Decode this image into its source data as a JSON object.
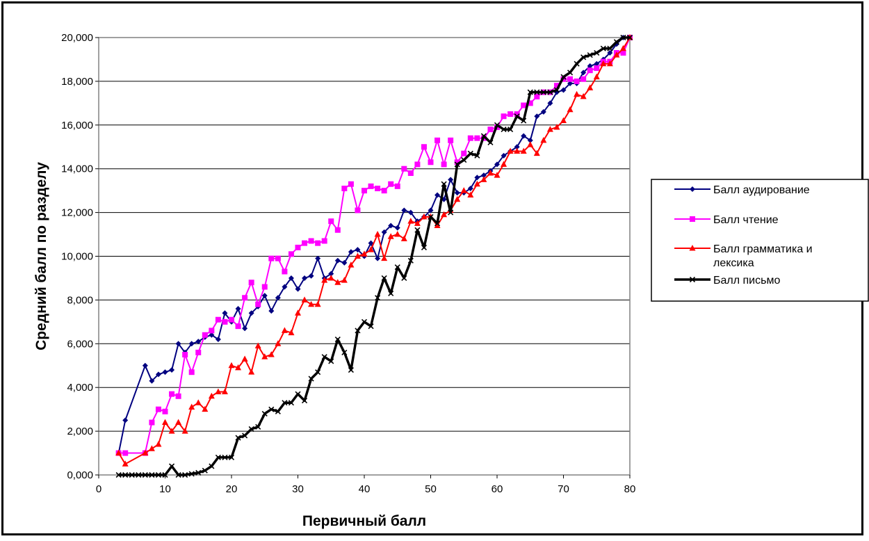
{
  "chart_data": {
    "type": "line",
    "title": "",
    "xlabel": "Первичный балл",
    "ylabel": "Средний балл по разделу",
    "xlim": [
      0,
      80
    ],
    "ylim": [
      0,
      20
    ],
    "x_ticks": [
      "0",
      "10",
      "20",
      "30",
      "40",
      "50",
      "60",
      "70",
      "80"
    ],
    "y_ticks": [
      "0,000",
      "2,000",
      "4,000",
      "6,000",
      "8,000",
      "10,000",
      "12,000",
      "14,000",
      "16,000",
      "18,000",
      "20,000"
    ],
    "grid": "horizontal",
    "legend": "right",
    "series": [
      {
        "name": "Балл аудирование",
        "color": "#000080",
        "marker": "diamond",
        "points": [
          [
            3,
            1.0
          ],
          [
            4,
            2.5
          ],
          [
            7,
            5.0
          ],
          [
            8,
            4.3
          ],
          [
            9,
            4.6
          ],
          [
            10,
            4.7
          ],
          [
            11,
            4.8
          ],
          [
            12,
            6.0
          ],
          [
            13,
            5.6
          ],
          [
            14,
            6.0
          ],
          [
            15,
            6.1
          ],
          [
            16,
            6.3
          ],
          [
            17,
            6.4
          ],
          [
            18,
            6.2
          ],
          [
            19,
            7.4
          ],
          [
            20,
            7.0
          ],
          [
            21,
            7.6
          ],
          [
            22,
            6.7
          ],
          [
            23,
            7.4
          ],
          [
            24,
            7.7
          ],
          [
            25,
            8.2
          ],
          [
            26,
            7.5
          ],
          [
            27,
            8.1
          ],
          [
            28,
            8.6
          ],
          [
            29,
            9.0
          ],
          [
            30,
            8.5
          ],
          [
            31,
            9.0
          ],
          [
            32,
            9.1
          ],
          [
            33,
            9.9
          ],
          [
            34,
            9.0
          ],
          [
            35,
            9.2
          ],
          [
            36,
            9.8
          ],
          [
            37,
            9.7
          ],
          [
            38,
            10.2
          ],
          [
            39,
            10.3
          ],
          [
            40,
            10.0
          ],
          [
            41,
            10.6
          ],
          [
            42,
            9.9
          ],
          [
            43,
            11.1
          ],
          [
            44,
            11.4
          ],
          [
            45,
            11.3
          ],
          [
            46,
            12.1
          ],
          [
            47,
            12.0
          ],
          [
            48,
            11.6
          ],
          [
            49,
            11.8
          ],
          [
            50,
            12.1
          ],
          [
            51,
            12.8
          ],
          [
            52,
            12.6
          ],
          [
            53,
            13.5
          ],
          [
            54,
            12.9
          ],
          [
            55,
            12.9
          ],
          [
            56,
            13.1
          ],
          [
            57,
            13.6
          ],
          [
            58,
            13.7
          ],
          [
            59,
            13.9
          ],
          [
            60,
            14.2
          ],
          [
            61,
            14.6
          ],
          [
            62,
            14.8
          ],
          [
            63,
            15.0
          ],
          [
            64,
            15.5
          ],
          [
            65,
            15.3
          ],
          [
            66,
            16.4
          ],
          [
            67,
            16.6
          ],
          [
            68,
            17.0
          ],
          [
            69,
            17.5
          ],
          [
            70,
            17.6
          ],
          [
            71,
            17.9
          ],
          [
            72,
            17.9
          ],
          [
            73,
            18.4
          ],
          [
            74,
            18.7
          ],
          [
            75,
            18.8
          ],
          [
            76,
            19.0
          ],
          [
            77,
            19.3
          ],
          [
            78,
            19.7
          ],
          [
            79,
            20.0
          ],
          [
            80,
            20.0
          ]
        ]
      },
      {
        "name": "Балл чтение",
        "color": "#ff00ff",
        "marker": "square",
        "points": [
          [
            3,
            1.0
          ],
          [
            4,
            1.0
          ],
          [
            7,
            1.0
          ],
          [
            8,
            2.4
          ],
          [
            9,
            3.0
          ],
          [
            10,
            2.9
          ],
          [
            11,
            3.7
          ],
          [
            12,
            3.6
          ],
          [
            13,
            5.5
          ],
          [
            14,
            4.7
          ],
          [
            15,
            5.6
          ],
          [
            16,
            6.4
          ],
          [
            17,
            6.6
          ],
          [
            18,
            7.1
          ],
          [
            19,
            7.0
          ],
          [
            20,
            7.1
          ],
          [
            21,
            6.8
          ],
          [
            22,
            8.1
          ],
          [
            23,
            8.8
          ],
          [
            24,
            7.8
          ],
          [
            25,
            8.6
          ],
          [
            26,
            9.9
          ],
          [
            27,
            9.9
          ],
          [
            28,
            9.3
          ],
          [
            29,
            10.1
          ],
          [
            30,
            10.4
          ],
          [
            31,
            10.6
          ],
          [
            32,
            10.7
          ],
          [
            33,
            10.6
          ],
          [
            34,
            10.7
          ],
          [
            35,
            11.6
          ],
          [
            36,
            11.2
          ],
          [
            37,
            13.1
          ],
          [
            38,
            13.3
          ],
          [
            39,
            12.1
          ],
          [
            40,
            13.0
          ],
          [
            41,
            13.2
          ],
          [
            42,
            13.1
          ],
          [
            43,
            13.0
          ],
          [
            44,
            13.3
          ],
          [
            45,
            13.2
          ],
          [
            46,
            14.0
          ],
          [
            47,
            13.8
          ],
          [
            48,
            14.2
          ],
          [
            49,
            15.0
          ],
          [
            50,
            14.3
          ],
          [
            51,
            15.3
          ],
          [
            52,
            14.2
          ],
          [
            53,
            15.3
          ],
          [
            54,
            14.3
          ],
          [
            55,
            14.7
          ],
          [
            56,
            15.4
          ],
          [
            57,
            15.4
          ],
          [
            58,
            15.4
          ],
          [
            59,
            15.8
          ],
          [
            60,
            15.9
          ],
          [
            61,
            16.4
          ],
          [
            62,
            16.5
          ],
          [
            63,
            16.5
          ],
          [
            64,
            16.9
          ],
          [
            65,
            17.0
          ],
          [
            66,
            17.3
          ],
          [
            67,
            17.5
          ],
          [
            68,
            17.5
          ],
          [
            69,
            17.8
          ],
          [
            70,
            18.1
          ],
          [
            71,
            18.1
          ],
          [
            72,
            18.0
          ],
          [
            73,
            18.1
          ],
          [
            74,
            18.5
          ],
          [
            75,
            18.6
          ],
          [
            76,
            18.9
          ],
          [
            77,
            18.9
          ],
          [
            78,
            19.3
          ],
          [
            79,
            19.3
          ],
          [
            80,
            20.0
          ]
        ]
      },
      {
        "name": "Балл грамматика и лексика",
        "color": "#ff0000",
        "marker": "triangle",
        "points": [
          [
            3,
            1.0
          ],
          [
            4,
            0.5
          ],
          [
            7,
            1.0
          ],
          [
            8,
            1.2
          ],
          [
            9,
            1.4
          ],
          [
            10,
            2.4
          ],
          [
            11,
            2.0
          ],
          [
            12,
            2.4
          ],
          [
            13,
            2.0
          ],
          [
            14,
            3.1
          ],
          [
            15,
            3.3
          ],
          [
            16,
            3.0
          ],
          [
            17,
            3.6
          ],
          [
            18,
            3.8
          ],
          [
            19,
            3.8
          ],
          [
            20,
            5.0
          ],
          [
            21,
            4.9
          ],
          [
            22,
            5.3
          ],
          [
            23,
            4.7
          ],
          [
            24,
            5.9
          ],
          [
            25,
            5.4
          ],
          [
            26,
            5.5
          ],
          [
            27,
            6.0
          ],
          [
            28,
            6.6
          ],
          [
            29,
            6.5
          ],
          [
            30,
            7.4
          ],
          [
            31,
            8.0
          ],
          [
            32,
            7.8
          ],
          [
            33,
            7.8
          ],
          [
            34,
            8.9
          ],
          [
            35,
            9.0
          ],
          [
            36,
            8.8
          ],
          [
            37,
            8.9
          ],
          [
            38,
            9.6
          ],
          [
            39,
            10.0
          ],
          [
            40,
            10.1
          ],
          [
            41,
            10.3
          ],
          [
            42,
            11.0
          ],
          [
            43,
            9.9
          ],
          [
            44,
            10.9
          ],
          [
            45,
            11.0
          ],
          [
            46,
            10.8
          ],
          [
            47,
            11.6
          ],
          [
            48,
            11.5
          ],
          [
            49,
            11.8
          ],
          [
            50,
            11.8
          ],
          [
            51,
            11.4
          ],
          [
            52,
            11.9
          ],
          [
            53,
            12.1
          ],
          [
            54,
            12.6
          ],
          [
            55,
            13.0
          ],
          [
            56,
            12.8
          ],
          [
            57,
            13.3
          ],
          [
            58,
            13.5
          ],
          [
            59,
            13.8
          ],
          [
            60,
            13.7
          ],
          [
            61,
            14.2
          ],
          [
            62,
            14.8
          ],
          [
            63,
            14.8
          ],
          [
            64,
            14.8
          ],
          [
            65,
            15.1
          ],
          [
            66,
            14.7
          ],
          [
            67,
            15.3
          ],
          [
            68,
            15.8
          ],
          [
            69,
            15.9
          ],
          [
            70,
            16.2
          ],
          [
            71,
            16.7
          ],
          [
            72,
            17.4
          ],
          [
            73,
            17.3
          ],
          [
            74,
            17.7
          ],
          [
            75,
            18.2
          ],
          [
            76,
            18.8
          ],
          [
            77,
            18.8
          ],
          [
            78,
            19.2
          ],
          [
            79,
            19.5
          ],
          [
            80,
            20.0
          ]
        ]
      },
      {
        "name": "Балл письмо",
        "color": "#000000",
        "marker": "x",
        "points": [
          [
            3,
            0.0
          ],
          [
            4,
            0.0
          ],
          [
            5,
            0.0
          ],
          [
            6,
            0.0
          ],
          [
            7,
            0.0
          ],
          [
            8,
            0.0
          ],
          [
            9,
            0.0
          ],
          [
            10,
            0.0
          ],
          [
            11,
            0.4
          ],
          [
            12,
            0.0
          ],
          [
            13,
            0.0
          ],
          [
            14,
            0.05
          ],
          [
            15,
            0.1
          ],
          [
            16,
            0.2
          ],
          [
            17,
            0.4
          ],
          [
            18,
            0.8
          ],
          [
            19,
            0.8
          ],
          [
            20,
            0.8
          ],
          [
            21,
            1.7
          ],
          [
            22,
            1.8
          ],
          [
            23,
            2.1
          ],
          [
            24,
            2.2
          ],
          [
            25,
            2.8
          ],
          [
            26,
            3.0
          ],
          [
            27,
            2.9
          ],
          [
            28,
            3.3
          ],
          [
            29,
            3.3
          ],
          [
            30,
            3.7
          ],
          [
            31,
            3.4
          ],
          [
            32,
            4.4
          ],
          [
            33,
            4.7
          ],
          [
            34,
            5.4
          ],
          [
            35,
            5.2
          ],
          [
            36,
            6.2
          ],
          [
            37,
            5.6
          ],
          [
            38,
            4.8
          ],
          [
            39,
            6.6
          ],
          [
            40,
            7.0
          ],
          [
            41,
            6.8
          ],
          [
            42,
            8.1
          ],
          [
            43,
            9.0
          ],
          [
            44,
            8.3
          ],
          [
            45,
            9.5
          ],
          [
            46,
            9.0
          ],
          [
            47,
            9.8
          ],
          [
            48,
            11.2
          ],
          [
            49,
            10.4
          ],
          [
            50,
            11.8
          ],
          [
            51,
            11.5
          ],
          [
            52,
            13.3
          ],
          [
            53,
            12.0
          ],
          [
            54,
            14.2
          ],
          [
            55,
            14.4
          ],
          [
            56,
            14.7
          ],
          [
            57,
            14.6
          ],
          [
            58,
            15.5
          ],
          [
            59,
            15.2
          ],
          [
            60,
            16.0
          ],
          [
            61,
            15.8
          ],
          [
            62,
            15.8
          ],
          [
            63,
            16.4
          ],
          [
            64,
            16.2
          ],
          [
            65,
            17.5
          ],
          [
            66,
            17.5
          ],
          [
            67,
            17.5
          ],
          [
            68,
            17.5
          ],
          [
            69,
            17.6
          ],
          [
            70,
            18.2
          ],
          [
            71,
            18.4
          ],
          [
            72,
            18.8
          ],
          [
            73,
            19.1
          ],
          [
            74,
            19.2
          ],
          [
            75,
            19.3
          ],
          [
            76,
            19.5
          ],
          [
            77,
            19.5
          ],
          [
            78,
            19.8
          ],
          [
            79,
            20.0
          ],
          [
            80,
            20.0
          ]
        ]
      }
    ]
  }
}
